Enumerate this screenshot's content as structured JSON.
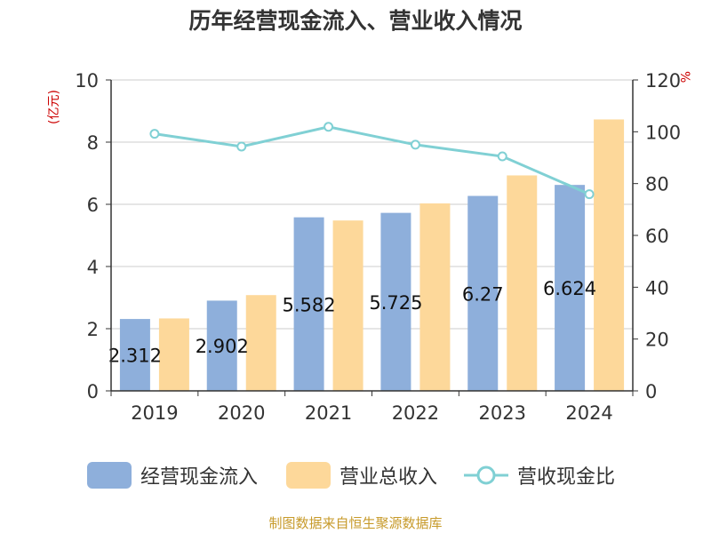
{
  "chart_data": {
    "type": "bar",
    "title": "历年经营现金流入、营业收入情况",
    "categories": [
      "2019",
      "2020",
      "2021",
      "2022",
      "2023",
      "2024"
    ],
    "series": [
      {
        "name": "经营现金流入",
        "type": "bar",
        "axis": "left",
        "values": [
          2.312,
          2.902,
          5.582,
          5.725,
          6.27,
          6.624
        ],
        "labels": [
          "2.312",
          "2.902",
          "5.582",
          "5.725",
          "6.27",
          "6.624"
        ],
        "color": "#8eafdb"
      },
      {
        "name": "营业总收入",
        "type": "bar",
        "axis": "left",
        "values": [
          2.33,
          3.08,
          5.48,
          6.03,
          6.93,
          8.73
        ],
        "color": "#fdd89a"
      },
      {
        "name": "营收现金比",
        "type": "line",
        "axis": "right",
        "values": [
          99.2,
          94.3,
          101.9,
          95.0,
          90.5,
          75.9
        ],
        "color": "#80d0d4"
      }
    ],
    "y_left": {
      "unit": "(亿元)",
      "ylim": [
        0,
        10
      ],
      "ticks": [
        "0",
        "2",
        "4",
        "6",
        "8",
        "10"
      ]
    },
    "y_right": {
      "unit": "%",
      "ylim": [
        0,
        120
      ],
      "ticks": [
        "0",
        "20",
        "40",
        "60",
        "80",
        "100",
        "120"
      ]
    },
    "grid": true,
    "legend_position": "bottom"
  },
  "source": "制图数据来自恒生聚源数据库"
}
